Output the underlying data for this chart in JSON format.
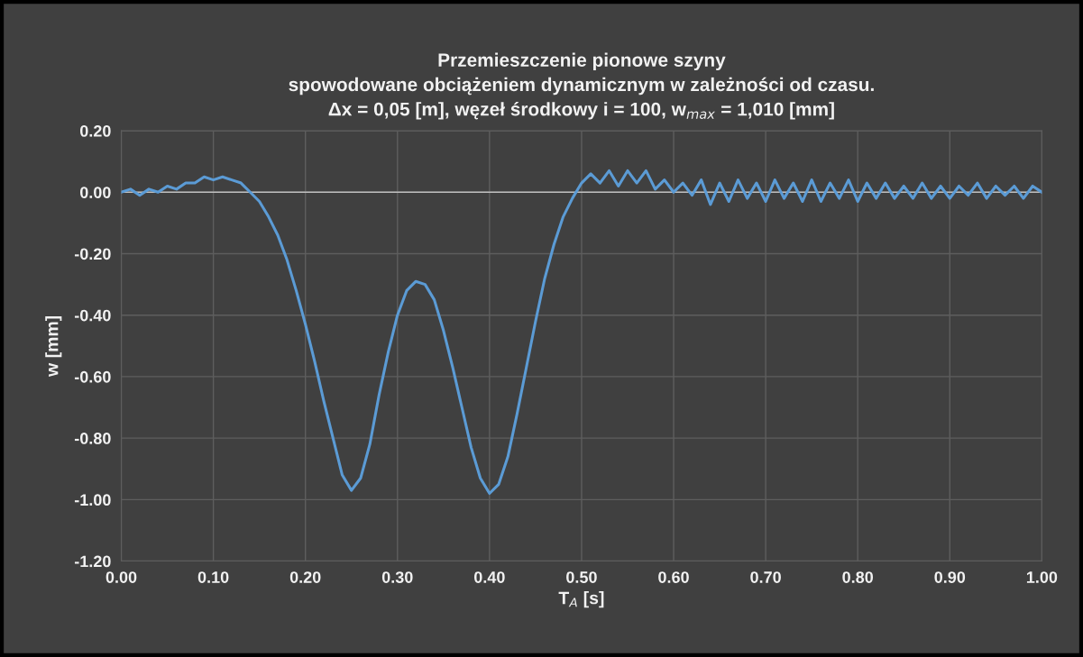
{
  "chart_data": {
    "type": "line",
    "title": "Przemieszczenie pionowe szyny\nspowodowane obciążeniem dynamicznym w zależności od czasu.\nΔx = 0,05 [m], węzeł środkowy i = 100, w$_{max}$ = 1,010 [mm]",
    "xlabel": "T$_{A}$ [s]",
    "ylabel": "w [mm]",
    "series": [
      {
        "color": "#5b9bd5",
        "x": [
          0.0,
          0.01,
          0.02,
          0.03,
          0.04,
          0.05,
          0.06,
          0.07,
          0.08,
          0.09,
          0.1,
          0.11,
          0.12,
          0.13,
          0.14,
          0.15,
          0.16,
          0.17,
          0.18,
          0.19,
          0.2,
          0.21,
          0.22,
          0.23,
          0.24,
          0.25,
          0.26,
          0.27,
          0.28,
          0.29,
          0.3,
          0.31,
          0.32,
          0.33,
          0.34,
          0.35,
          0.36,
          0.37,
          0.38,
          0.39,
          0.4,
          0.41,
          0.42,
          0.43,
          0.44,
          0.45,
          0.46,
          0.47,
          0.48,
          0.49,
          0.5,
          0.51,
          0.52,
          0.53,
          0.54,
          0.55,
          0.56,
          0.57,
          0.58,
          0.59,
          0.6,
          0.61,
          0.62,
          0.63,
          0.64,
          0.65,
          0.66,
          0.67,
          0.68,
          0.69,
          0.7,
          0.71,
          0.72,
          0.73,
          0.74,
          0.75,
          0.76,
          0.77,
          0.78,
          0.79,
          0.8,
          0.81,
          0.82,
          0.83,
          0.84,
          0.85,
          0.86,
          0.87,
          0.88,
          0.89,
          0.9,
          0.91,
          0.92,
          0.93,
          0.94,
          0.95,
          0.96,
          0.97,
          0.98,
          0.99,
          1.0
        ],
        "values": [
          0.0,
          0.01,
          -0.01,
          0.01,
          0.0,
          0.02,
          0.01,
          0.03,
          0.03,
          0.05,
          0.04,
          0.05,
          0.04,
          0.03,
          0.0,
          -0.03,
          -0.08,
          -0.14,
          -0.22,
          -0.32,
          -0.43,
          -0.55,
          -0.68,
          -0.8,
          -0.92,
          -0.97,
          -0.93,
          -0.82,
          -0.66,
          -0.52,
          -0.4,
          -0.32,
          -0.29,
          -0.3,
          -0.35,
          -0.45,
          -0.57,
          -0.7,
          -0.83,
          -0.93,
          -0.98,
          -0.95,
          -0.86,
          -0.72,
          -0.57,
          -0.42,
          -0.28,
          -0.17,
          -0.08,
          -0.02,
          0.03,
          0.06,
          0.03,
          0.07,
          0.02,
          0.07,
          0.03,
          0.07,
          0.01,
          0.04,
          0.0,
          0.03,
          -0.01,
          0.04,
          -0.04,
          0.03,
          -0.03,
          0.04,
          -0.02,
          0.03,
          -0.03,
          0.04,
          -0.02,
          0.03,
          -0.03,
          0.04,
          -0.03,
          0.03,
          -0.02,
          0.04,
          -0.03,
          0.03,
          -0.02,
          0.03,
          -0.02,
          0.02,
          -0.02,
          0.03,
          -0.02,
          0.02,
          -0.02,
          0.02,
          -0.01,
          0.03,
          -0.02,
          0.02,
          -0.01,
          0.02,
          -0.02,
          0.02,
          0.0
        ]
      }
    ],
    "xlim": [
      0,
      1
    ],
    "ylim": [
      -1.2,
      0.2
    ],
    "xticks": [
      {
        "value": 0,
        "label": "0.00"
      },
      {
        "value": 0.1,
        "label": "0.10"
      },
      {
        "value": 0.2,
        "label": "0.20"
      },
      {
        "value": 0.3,
        "label": "0.30"
      },
      {
        "value": 0.4,
        "label": "0.40"
      },
      {
        "value": 0.5,
        "label": "0.50"
      },
      {
        "value": 0.6,
        "label": "0.60"
      },
      {
        "value": 0.7,
        "label": "0.70"
      },
      {
        "value": 0.8,
        "label": "0.80"
      },
      {
        "value": 0.9,
        "label": "0.90"
      },
      {
        "value": 1,
        "label": "1.00"
      }
    ],
    "yticks": [
      {
        "value": -1.2,
        "label": "-1.20"
      },
      {
        "value": -1.0,
        "label": "-1.00"
      },
      {
        "value": -0.8,
        "label": "-0.80"
      },
      {
        "value": -0.6,
        "label": "-0.60"
      },
      {
        "value": -0.4,
        "label": "-0.40"
      },
      {
        "value": -0.2,
        "label": "-0.20"
      },
      {
        "value": 0,
        "label": "0.00"
      },
      {
        "value": 0.2,
        "label": "0.20"
      }
    ],
    "ref_lines": [
      {
        "axis": "y",
        "value": 0,
        "color": "#bfbfbf"
      }
    ],
    "grid": true,
    "marker": "none",
    "line_style": "solid",
    "legend": false
  }
}
